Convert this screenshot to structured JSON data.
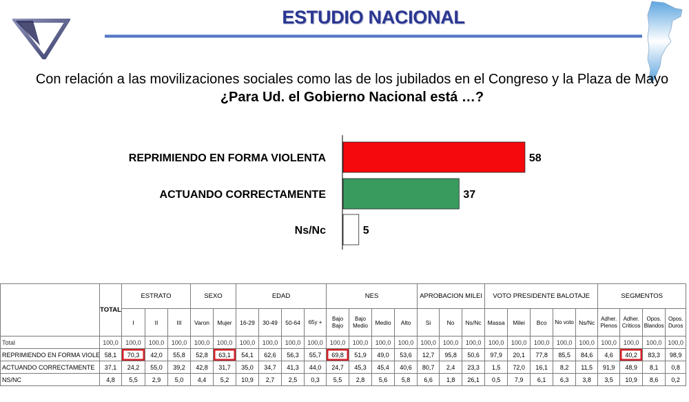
{
  "header": {
    "title": "ESTUDIO NACIONAL",
    "question_line1": "Con relación a las movilizaciones sociales como las de los jubilados en el Congreso y la Plaza de Mayo",
    "question_line2": "¿Para Ud. el Gobierno Nacional está …?"
  },
  "colors": {
    "title": "#2b3791",
    "bar_red": "#f5090c",
    "bar_green": "#3a9b5e",
    "bar_white": "#ffffff",
    "highlight": "#d3222a"
  },
  "chart_data": {
    "type": "bar",
    "orientation": "horizontal",
    "categories": [
      "REPRIMIENDO EN FORMA VIOLENTA",
      "ACTUANDO CORRECTAMENTE",
      "Ns/Nc"
    ],
    "values": [
      58,
      37,
      5
    ],
    "value_labels": [
      "58",
      "37",
      "5"
    ],
    "xlim": [
      0,
      100
    ],
    "grid": false,
    "colors": [
      "#f5090c",
      "#3a9b5e",
      "#ffffff"
    ]
  },
  "table": {
    "total_header": "TOTAL",
    "groups": [
      {
        "label": "ESTRATO",
        "cols": [
          "I",
          "II",
          "III"
        ]
      },
      {
        "label": "SEXO",
        "cols": [
          "Varon",
          "Mujer"
        ]
      },
      {
        "label": "EDAD",
        "cols": [
          "16-29",
          "30-49",
          "50-64",
          "65y +"
        ]
      },
      {
        "label": "NES",
        "cols": [
          "Bajo Bajo",
          "Bajo Medio",
          "Medio",
          "Alto"
        ]
      },
      {
        "label": "APROBACION  MILEI",
        "cols": [
          "Si",
          "No",
          "Ns/Nc"
        ]
      },
      {
        "label": "VOTO PRESIDENTE BALOTAJE",
        "cols": [
          "Massa",
          "Milei",
          "Bco",
          "No voto",
          "Ns/Nc"
        ]
      },
      {
        "label": "SEGMENTOS",
        "cols": [
          "Adher. Plenos",
          "Adher. Criticos",
          "Opos. Blandos",
          "Opos. Duros"
        ]
      }
    ],
    "rows": [
      {
        "label": "Total",
        "values": [
          "100,0",
          "100,0",
          "100,0",
          "100,0",
          "100,0",
          "100,0",
          "100,0",
          "100,0",
          "100,0",
          "100,0",
          "100,0",
          "100,0",
          "100,0",
          "100,0",
          "100,0",
          "100,0",
          "100,0",
          "100,0",
          "100,0",
          "100,0",
          "100,0",
          "100,0",
          "100,0",
          "100,0",
          "100,0",
          "100,0"
        ]
      },
      {
        "label": "REPRIMIENDO EN FORMA VIOLENTA",
        "values": [
          "58,1",
          "70,3",
          "42,0",
          "55,8",
          "52,8",
          "63,1",
          "54,1",
          "62,6",
          "56,3",
          "55,7",
          "69,8",
          "51,9",
          "49,0",
          "53,6",
          "12,7",
          "95,8",
          "50,6",
          "97,9",
          "20,1",
          "77,8",
          "85,5",
          "84,6",
          "4,6",
          "40,2",
          "83,3",
          "98,9"
        ]
      },
      {
        "label": "ACTUANDO CORRECTAMENTE",
        "values": [
          "37,1",
          "24,2",
          "55,0",
          "39,2",
          "42,8",
          "31,7",
          "35,0",
          "34,7",
          "41,3",
          "44,0",
          "24,7",
          "45,3",
          "45,4",
          "40,6",
          "80,7",
          "2,4",
          "23,3",
          "1,5",
          "72,0",
          "16,1",
          "8,2",
          "11,5",
          "91,9",
          "48,9",
          "8,1",
          "0,8"
        ]
      },
      {
        "label": "NS/NC",
        "values": [
          "4,8",
          "5,5",
          "2,9",
          "5,0",
          "4,4",
          "5,2",
          "10,9",
          "2,7",
          "2,5",
          "0,3",
          "5,5",
          "2,8",
          "5,6",
          "5,8",
          "6,6",
          "1,8",
          "26,1",
          "0,5",
          "7,9",
          "6,1",
          "6,3",
          "3,8",
          "3,5",
          "10,9",
          "8,6",
          "0,2"
        ]
      }
    ],
    "highlighted_cells": [
      [
        1,
        1
      ],
      [
        1,
        5
      ],
      [
        1,
        10
      ],
      [
        1,
        23
      ]
    ]
  }
}
